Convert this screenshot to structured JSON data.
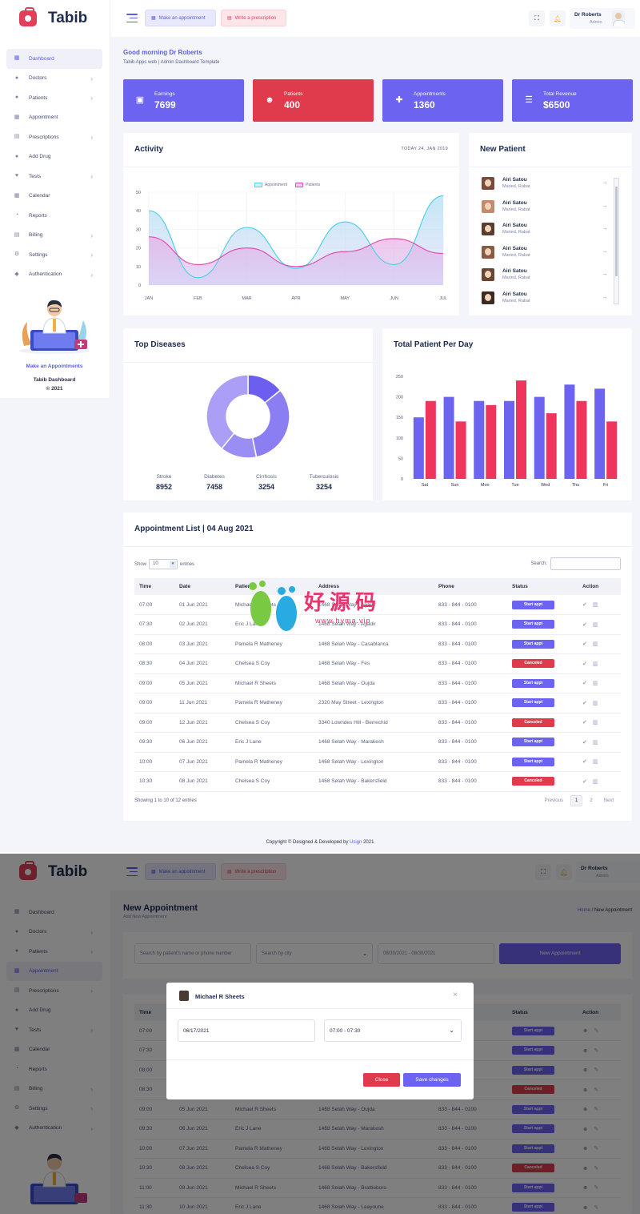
{
  "app": {
    "name": "Tabib"
  },
  "topbar": {
    "make_appointment": "Make an appointment",
    "write_prescription": "Write a prescription",
    "user_name": "Dr Roberts",
    "user_role": "Admin"
  },
  "sidebar": {
    "items": [
      {
        "label": "Dashboard",
        "icon": "dashboard-icon"
      },
      {
        "label": "Doctors",
        "icon": "doctor-icon"
      },
      {
        "label": "Patients",
        "icon": "patients-icon"
      },
      {
        "label": "Appointment",
        "icon": "calendar-icon"
      },
      {
        "label": "Prescriptions",
        "icon": "prescription-icon"
      },
      {
        "label": "Add Drug",
        "icon": "drug-icon"
      },
      {
        "label": "Tests",
        "icon": "test-icon"
      },
      {
        "label": "Calendar",
        "icon": "calendar-icon"
      },
      {
        "label": "Reports",
        "icon": "report-icon"
      },
      {
        "label": "Billing",
        "icon": "billing-icon"
      },
      {
        "label": "Settings",
        "icon": "gear-icon"
      },
      {
        "label": "Authentication",
        "icon": "tag-icon"
      }
    ],
    "promo_link": "Make an Appointments",
    "promo_title": "Tabib Dashboard",
    "promo_year": "© 2021"
  },
  "dashboard": {
    "greeting": "Good morning Dr Roberts",
    "subtitle": "Tabib Apps web | Admin Dashboard Template",
    "stats": [
      {
        "label": "Earnings",
        "value": "7699",
        "icon": "calendar-check-icon"
      },
      {
        "label": "Patients",
        "value": "400",
        "icon": "patient-icon"
      },
      {
        "label": "Appointments",
        "value": "1360",
        "icon": "user-plus-icon"
      },
      {
        "label": "Total Revenue",
        "value": "$6500",
        "icon": "database-icon"
      }
    ],
    "activity_title": "Activity",
    "activity_date": "TODAY 24, JAN 2019",
    "new_patient_title": "New Patient",
    "new_patients": [
      {
        "name": "Airi Satou",
        "sub": "Maried, Rabat"
      },
      {
        "name": "Airi Satou",
        "sub": "Maried, Rabat"
      },
      {
        "name": "Airi Satou",
        "sub": "Maried, Rabat"
      },
      {
        "name": "Airi Satou",
        "sub": "Maried, Rabat"
      },
      {
        "name": "Airi Satou",
        "sub": "Maried, Rabat"
      },
      {
        "name": "Airi Satou",
        "sub": "Maried, Rabat"
      }
    ],
    "top_diseases_title": "Top Diseases",
    "diseases": [
      {
        "label": "Stroke",
        "value": "8952"
      },
      {
        "label": "Diabetes",
        "value": "7458"
      },
      {
        "label": "Cirrhosis",
        "value": "3254"
      },
      {
        "label": "Tuberculosis",
        "value": "3254"
      }
    ],
    "per_day_title": "Total Patient Per Day",
    "appointment_list_title": "Appointment List | 04 Aug 2021",
    "show_label": "Show",
    "show_value": "10",
    "entries_label": "entries",
    "search_label": "Search:",
    "columns": [
      "Time",
      "Date",
      "Patient",
      "Address",
      "Phone",
      "Status",
      "Action"
    ],
    "rows": [
      {
        "time": "07:00",
        "date": "01 Jun 2021",
        "patient": "Michael R Sheets",
        "address": "1468 Selah Way - Agadir",
        "phone": "833 - 844 - 0100",
        "status": "Start appt",
        "kind": "start"
      },
      {
        "time": "07:30",
        "date": "02 Jun 2021",
        "patient": "Eric J Lane",
        "address": "1468 Selah Way - Agadir",
        "phone": "833 - 844 - 0100",
        "status": "Start appt",
        "kind": "start"
      },
      {
        "time": "08:00",
        "date": "03 Jun 2021",
        "patient": "Pamela R Matheney",
        "address": "1468 Selah Way - Casablanca",
        "phone": "833 - 844 - 0100",
        "status": "Start appt",
        "kind": "start"
      },
      {
        "time": "08:30",
        "date": "04 Jun 2021",
        "patient": "Chelsea S Coy",
        "address": "1468 Selah Way - Fes",
        "phone": "833 - 844 - 0100",
        "status": "Canceled",
        "kind": "cancel"
      },
      {
        "time": "09:00",
        "date": "05 Jun 2021",
        "patient": "Michael R Sheets",
        "address": "1468 Selah Way - Oujda",
        "phone": "833 - 844 - 0100",
        "status": "Start appt",
        "kind": "start"
      },
      {
        "time": "09:00",
        "date": "11 Jun 2021",
        "patient": "Pamela R Matheney",
        "address": "2320 May Street - Lexington",
        "phone": "833 - 844 - 0100",
        "status": "Start appt",
        "kind": "start"
      },
      {
        "time": "09:00",
        "date": "12 Jun 2021",
        "patient": "Chelsea S Coy",
        "address": "3340 Lowndes Hill - Berrechid",
        "phone": "833 - 844 - 0100",
        "status": "Canceled",
        "kind": "cancel"
      },
      {
        "time": "09:30",
        "date": "06 Jun 2021",
        "patient": "Eric J Lane",
        "address": "1468 Selah Way - Marakesh",
        "phone": "833 - 844 - 0100",
        "status": "Start appt",
        "kind": "start"
      },
      {
        "time": "10:00",
        "date": "07 Jun 2021",
        "patient": "Pamela R Matheney",
        "address": "1468 Selah Way - Lexington",
        "phone": "833 - 844 - 0100",
        "status": "Start appt",
        "kind": "start"
      },
      {
        "time": "10:30",
        "date": "08 Jun 2021",
        "patient": "Chelsea S Coy",
        "address": "1468 Selah Way - Bakersfield",
        "phone": "833 - 844 - 0100",
        "status": "Canceled",
        "kind": "cancel"
      }
    ],
    "showing": "Showing 1 to 10 of 12 entries",
    "pager": {
      "prev": "Previous",
      "p1": "1",
      "p2": "2",
      "next": "Next"
    },
    "footer_prefix": "Copyright © Designed & Developed by",
    "footer_link": "Usign",
    "footer_suffix": "2021"
  },
  "watermark": {
    "text": "好源码",
    "url": "www.hyma.vip"
  },
  "new_appointment": {
    "title": "New Appointment",
    "subtitle": "Add New Appointment",
    "crumb_home": "Home",
    "crumb_sep": " / ",
    "crumb_current": "New Appointment",
    "search_placeholder": "Search by patient's name or phone number",
    "city_placeholder": "Search by city",
    "date_range": "08/30/2021 - 08/30/2021",
    "new_button": "New Appointment",
    "columns": [
      "Time",
      "Date",
      "Patient",
      "Address",
      "Phone",
      "Status",
      "Action"
    ],
    "rows": [
      {
        "time": "07:00",
        "date": "",
        "patient": "",
        "address": "",
        "phone": "",
        "status": "Start appt",
        "kind": "start"
      },
      {
        "time": "07:30",
        "date": "",
        "patient": "",
        "address": "",
        "phone": "",
        "status": "Start appt",
        "kind": "start"
      },
      {
        "time": "08:00",
        "date": "",
        "patient": "",
        "address": "",
        "phone": "",
        "status": "Start appt",
        "kind": "start"
      },
      {
        "time": "08:30",
        "date": "",
        "patient": "",
        "address": "",
        "phone": "",
        "status": "Canceled",
        "kind": "cancel"
      },
      {
        "time": "09:00",
        "date": "05 Jun 2021",
        "patient": "Michael R Sheets",
        "address": "1468 Selah Way - Oujda",
        "phone": "833 - 844 - 0100",
        "status": "Start appt",
        "kind": "start"
      },
      {
        "time": "09:30",
        "date": "06 Jun 2021",
        "patient": "Eric J Lane",
        "address": "1468 Selah Way - Marakesh",
        "phone": "833 - 844 - 0100",
        "status": "Start appt",
        "kind": "start"
      },
      {
        "time": "10:00",
        "date": "07 Jun 2021",
        "patient": "Pamela R Matheney",
        "address": "1468 Selah Way - Lexington",
        "phone": "833 - 844 - 0100",
        "status": "Start appt",
        "kind": "start"
      },
      {
        "time": "10:30",
        "date": "08 Jun 2021",
        "patient": "Chelsea S Coy",
        "address": "1468 Selah Way - Bakersfield",
        "phone": "833 - 844 - 0100",
        "status": "Canceled",
        "kind": "cancel"
      },
      {
        "time": "11:00",
        "date": "09 Jun 2021",
        "patient": "Michael R Sheets",
        "address": "1468 Selah Way - Brattleboro",
        "phone": "833 - 844 - 0100",
        "status": "Start appt",
        "kind": "start"
      },
      {
        "time": "11:30",
        "date": "10 Jun 2021",
        "patient": "Eric J Lane",
        "address": "1468 Selah Way - Laayoune",
        "phone": "833 - 844 - 0100",
        "status": "Start appt",
        "kind": "start"
      }
    ],
    "modal": {
      "patient": "Michael R Sheets",
      "date": "06/17/2021",
      "time": "07:00 - 07:30",
      "close": "Close",
      "save": "Save changes"
    }
  },
  "colors": {
    "primary": "#6c63f0",
    "danger": "#df3b4d",
    "appointment_line": "#52d1e6",
    "patients_line": "#e04fb0"
  },
  "chart_data": [
    {
      "type": "area",
      "title": "Activity",
      "categories": [
        "JAN",
        "FEB",
        "MAR",
        "APR",
        "MAY",
        "JUN",
        "JUL"
      ],
      "series": [
        {
          "name": "Appointment",
          "values": [
            40,
            4,
            31,
            9,
            34,
            11,
            48
          ]
        },
        {
          "name": "Patients",
          "values": [
            26,
            11,
            20,
            10,
            18,
            25,
            17
          ]
        }
      ],
      "ylim": [
        0,
        50
      ],
      "yticks": [
        0,
        10,
        20,
        30,
        40,
        50
      ],
      "legend": "top-center",
      "grid": true
    },
    {
      "type": "pie",
      "title": "Top Diseases",
      "categories": [
        "Stroke",
        "Diabetes",
        "Cirrhosis",
        "Tuberculosis"
      ],
      "values": [
        8952,
        7458,
        3254,
        3254
      ],
      "donut": true
    },
    {
      "type": "bar",
      "title": "Total Patient Per Day",
      "categories": [
        "Sat",
        "Sun",
        "Mon",
        "Tue",
        "Wed",
        "Thu",
        "Fri"
      ],
      "series": [
        {
          "values": [
            150,
            200,
            190,
            190,
            200,
            230,
            220
          ]
        },
        {
          "values": [
            190,
            140,
            180,
            240,
            160,
            190,
            140
          ]
        }
      ],
      "ylim": [
        0,
        250
      ],
      "yticks": [
        0,
        50,
        100,
        150,
        200,
        250
      ],
      "series_colors": [
        "#6c63f0",
        "#f0355d"
      ]
    }
  ]
}
